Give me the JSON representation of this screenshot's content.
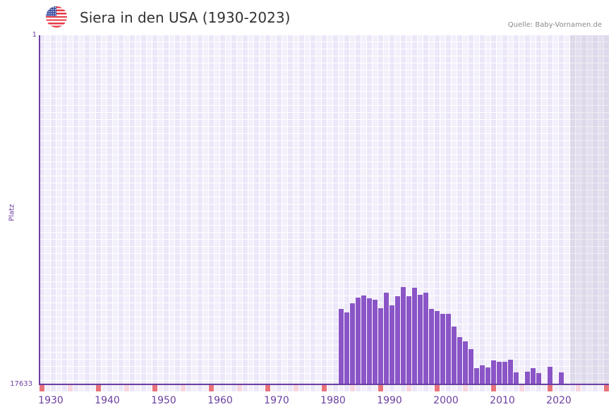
{
  "header": {
    "flag_icon": "us-flag-icon",
    "title": "Siera in den USA (1930-2023)",
    "source": "Quelle: Baby-Vornamen.de"
  },
  "colors": {
    "bar": "#8a55c6",
    "axis": "#6b3fa0",
    "decade_marker": "#e8737a",
    "half_decade_marker": "#f7d6df",
    "future_shade": "#e2dcea"
  },
  "chart_data": {
    "type": "bar",
    "title": "Siera in den USA (1930-2023)",
    "xlabel": "",
    "ylabel": "Platz",
    "ylim": [
      17633,
      1
    ],
    "y_inverted": true,
    "y_ticks": [
      "1",
      "17633"
    ],
    "x_ticks": [
      "1930",
      "1940",
      "1950",
      "1960",
      "1970",
      "1980",
      "1990",
      "2000",
      "2010",
      "2020"
    ],
    "x_range": [
      1928,
      2028
    ],
    "grid": true,
    "legend": null,
    "categories": [
      1981,
      1982,
      1983,
      1984,
      1985,
      1986,
      1987,
      1988,
      1989,
      1990,
      1991,
      1992,
      1993,
      1994,
      1995,
      1996,
      1997,
      1998,
      1999,
      2000,
      2001,
      2002,
      2003,
      2004,
      2005,
      2006,
      2007,
      2008,
      2009,
      2010,
      2011,
      2012,
      2014,
      2015,
      2016,
      2018,
      2020
    ],
    "values": [
      13822,
      13999,
      13536,
      13251,
      13144,
      13287,
      13358,
      13786,
      13002,
      13643,
      13180,
      12717,
      13180,
      12753,
      13109,
      13002,
      13822,
      13928,
      14071,
      14071,
      14712,
      15246,
      15460,
      15852,
      16814,
      16671,
      16778,
      16422,
      16493,
      16493,
      16386,
      17028,
      16992,
      16814,
      17064,
      16742,
      17028
    ],
    "no_data_years": [
      2013,
      2017,
      2019
    ],
    "shaded_region": [
      2022,
      2028
    ]
  },
  "axis": {
    "y_top": "1",
    "y_bottom": "17633",
    "y_label": "Platz",
    "x_labels": [
      {
        "label": "1930",
        "year": 1930
      },
      {
        "label": "1940",
        "year": 1940
      },
      {
        "label": "1950",
        "year": 1950
      },
      {
        "label": "1960",
        "year": 1960
      },
      {
        "label": "1970",
        "year": 1970
      },
      {
        "label": "1980",
        "year": 1980
      },
      {
        "label": "1990",
        "year": 1990
      },
      {
        "label": "2000",
        "year": 2000
      },
      {
        "label": "2010",
        "year": 2010
      },
      {
        "label": "2020",
        "year": 2020
      }
    ]
  }
}
